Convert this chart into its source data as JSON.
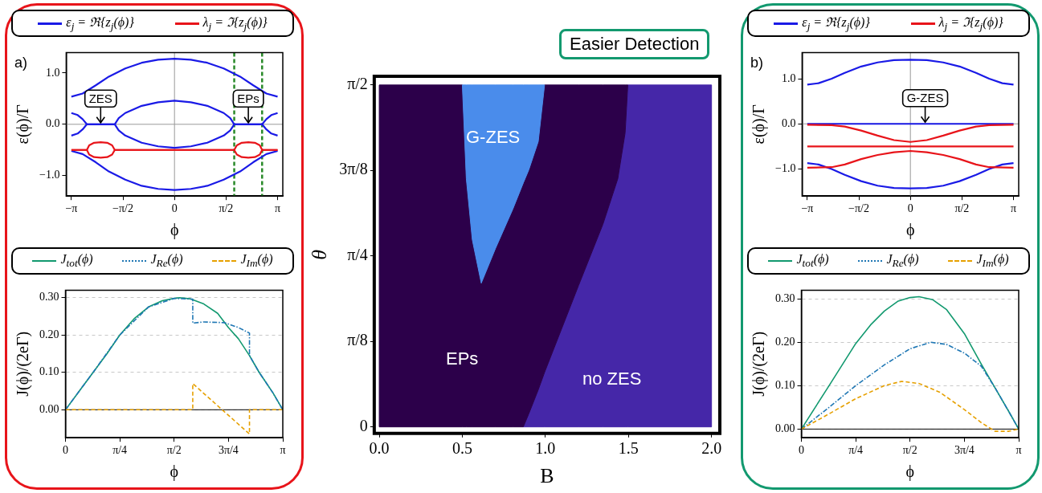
{
  "chart_data": [
    {
      "type": "line",
      "xlabel": "ϕ",
      "ylabel": "ε(ϕ)/Γ",
      "legend": "top",
      "grid": false,
      "xlim": [
        -3.3,
        3.3
      ],
      "xticks": [
        {
          "value": -3.1416,
          "label": "−π"
        },
        {
          "value": -1.5708,
          "label": "−π/2"
        },
        {
          "value": 0,
          "label": "0"
        },
        {
          "value": 1.5708,
          "label": "π/2"
        },
        {
          "value": 3.1416,
          "label": "π"
        }
      ],
      "ylim": [
        -1.4,
        1.4
      ],
      "yticks": [
        {
          "value": 1,
          "label": "1.0"
        },
        {
          "value": 0,
          "label": "0.0"
        },
        {
          "value": -1,
          "label": "−1.0"
        }
      ],
      "series": [
        {
          "name": "ε$_{j}$ = ℜ{z$_{j}$(ϕ)}",
          "color": "#1a1ae6",
          "x": [
            -3.1416,
            -2.8,
            -2.4,
            -2.0,
            -1.5,
            -1.0,
            -0.5,
            0,
            0.5,
            1.0,
            1.5,
            2.0,
            2.4,
            2.8,
            3.1416
          ],
          "values": [
            0.54,
            0.6,
            0.76,
            0.93,
            1.09,
            1.2,
            1.26,
            1.28,
            1.26,
            1.2,
            1.09,
            0.93,
            0.76,
            0.6,
            0.54
          ]
        },
        {
          "color": "#1a1ae6",
          "x": [
            -3.1416,
            -2.8,
            -2.4,
            -2.0,
            -1.5,
            -1.0,
            -0.5,
            0,
            0.5,
            1.0,
            1.5,
            2.0,
            2.4,
            2.8,
            3.1416
          ],
          "values": [
            -0.52,
            -0.58,
            -0.74,
            -0.92,
            -1.08,
            -1.2,
            -1.26,
            -1.28,
            -1.26,
            -1.2,
            -1.08,
            -0.92,
            -0.74,
            -0.58,
            -0.52
          ]
        },
        {
          "color": "#1a1ae6",
          "x": [
            -3.1416,
            -2.95,
            -2.8,
            -2.67,
            -1.82,
            -1.7,
            -1.5,
            -1.0,
            -0.5,
            0,
            0.5,
            1.0,
            1.5,
            1.7,
            1.82,
            2.67,
            2.8,
            2.95,
            3.1416
          ],
          "values": [
            0.22,
            0.18,
            0.1,
            0,
            0,
            0.12,
            0.22,
            0.36,
            0.43,
            0.46,
            0.43,
            0.36,
            0.22,
            0.12,
            0,
            0,
            0.1,
            0.18,
            0.22
          ]
        },
        {
          "color": "#1a1ae6",
          "x": [
            -3.1416,
            -2.95,
            -2.8,
            -2.67,
            -1.82,
            -1.7,
            -1.5,
            -1.0,
            -0.5,
            0,
            0.5,
            1.0,
            1.5,
            1.7,
            1.82,
            2.67,
            2.8,
            2.95,
            3.1416
          ],
          "values": [
            -0.22,
            -0.18,
            -0.1,
            0,
            0,
            -0.12,
            -0.22,
            -0.36,
            -0.43,
            -0.46,
            -0.43,
            -0.36,
            -0.22,
            -0.12,
            0,
            0,
            -0.1,
            -0.18,
            -0.22
          ]
        },
        {
          "name": "λ$_{j}$ = ℑ{z$_{j}$(ϕ)}",
          "color": "#e8141a",
          "x": [
            -3.1416,
            -2.67,
            -2.6,
            -2.45,
            -2.25,
            -2.05,
            -1.9,
            -1.82,
            1.82,
            1.9,
            2.05,
            2.25,
            2.45,
            2.6,
            2.67,
            3.1416
          ],
          "values": [
            -0.5,
            -0.5,
            -0.41,
            -0.36,
            -0.35,
            -0.36,
            -0.41,
            -0.5,
            -0.5,
            -0.41,
            -0.36,
            -0.35,
            -0.36,
            -0.41,
            -0.5,
            -0.5
          ]
        },
        {
          "color": "#e8141a",
          "x": [
            -3.1416,
            -2.67,
            -2.6,
            -2.45,
            -2.25,
            -2.05,
            -1.9,
            -1.82,
            1.82,
            1.9,
            2.05,
            2.25,
            2.45,
            2.6,
            2.67,
            3.1416
          ],
          "values": [
            -0.5,
            -0.5,
            -0.59,
            -0.64,
            -0.65,
            -0.64,
            -0.59,
            -0.5,
            -0.5,
            -0.59,
            -0.64,
            -0.65,
            -0.64,
            -0.59,
            -0.5,
            -0.5
          ]
        }
      ],
      "ref_lines": [
        {
          "axis": "x",
          "value": 0,
          "color": "#999999"
        },
        {
          "axis": "y",
          "value": 0,
          "color": "#999999"
        },
        {
          "axis": "x",
          "value": 1.82,
          "color": "#2a8a2a",
          "line_style": "dashed"
        },
        {
          "axis": "x",
          "value": 2.67,
          "color": "#2a8a2a",
          "line_style": "dashed"
        }
      ],
      "annotations": [
        "a)",
        {
          "text": "ZES",
          "x": -2.25,
          "y": 0
        },
        {
          "text": "EPs",
          "x": 2.25,
          "y": 0
        }
      ]
    },
    {
      "type": "line",
      "xlabel": "ϕ",
      "ylabel": "J(ϕ)/(2eΓ)",
      "legend": "top",
      "grid": "y",
      "xlim": [
        0,
        3.1416
      ],
      "xticks": [
        {
          "value": 0,
          "label": "0"
        },
        {
          "value": 0.7854,
          "label": "π/4"
        },
        {
          "value": 1.5708,
          "label": "π/2"
        },
        {
          "value": 2.3562,
          "label": "3π/4"
        },
        {
          "value": 3.1416,
          "label": "π"
        }
      ],
      "ylim": [
        -0.075,
        0.32
      ],
      "yticks": [
        {
          "value": 0,
          "label": "0.00"
        },
        {
          "value": 0.1,
          "label": "0.10"
        },
        {
          "value": 0.2,
          "label": "0.20"
        },
        {
          "value": 0.3,
          "label": "0.30"
        }
      ],
      "series": [
        {
          "name": "J$_{tot}$(ϕ)",
          "color": "#12996f",
          "line_style": "solid",
          "x": [
            0,
            0.2,
            0.4,
            0.6,
            0.785,
            1.0,
            1.2,
            1.4,
            1.57,
            1.65,
            1.8,
            2.0,
            2.2,
            2.356,
            2.5,
            2.66,
            2.8,
            3.0,
            3.1416
          ],
          "values": [
            0,
            0.05,
            0.1,
            0.15,
            0.2,
            0.245,
            0.275,
            0.292,
            0.298,
            0.3,
            0.297,
            0.283,
            0.258,
            0.22,
            0.19,
            0.145,
            0.1,
            0.045,
            0
          ]
        },
        {
          "name": "J$_{Re}$(ϕ)",
          "color": "#1f77b4",
          "line_style": "dotted",
          "x": [
            0,
            0.4,
            0.785,
            1.2,
            1.57,
            1.84,
            1.84,
            2.0,
            2.3,
            2.5,
            2.66,
            2.66,
            2.8,
            3.0,
            3.1416
          ],
          "values": [
            0,
            0.1,
            0.2,
            0.275,
            0.298,
            0.296,
            0.232,
            0.235,
            0.233,
            0.22,
            0.205,
            0.145,
            0.1,
            0.045,
            0
          ]
        },
        {
          "name": "J$_{Im}$(ϕ)",
          "color": "#e6a000",
          "line_style": "dashed",
          "x": [
            0,
            1.84,
            1.84,
            2.66,
            2.66,
            3.1416
          ],
          "values": [
            0,
            0,
            0.07,
            -0.065,
            0,
            0
          ]
        }
      ],
      "ref_lines": [
        {
          "axis": "y",
          "value": 0,
          "color": "#000000"
        }
      ]
    },
    {
      "type": "area",
      "xlabel": "B",
      "ylabel": "θ",
      "legend": false,
      "stacked": true,
      "x": [
        0,
        0.5,
        0.524,
        0.56,
        0.614,
        0.7,
        0.804,
        0.867,
        0.9,
        0.957,
        0.995,
        1.0,
        1.2,
        1.346,
        1.436,
        1.48,
        1.496,
        2.0
      ],
      "xlim": [
        -0.03,
        2.05
      ],
      "xticks": [
        {
          "value": 0,
          "label": "0.0"
        },
        {
          "value": 0.5,
          "label": "0.5"
        },
        {
          "value": 1,
          "label": "1.0"
        },
        {
          "value": 1.5,
          "label": "1.5"
        },
        {
          "value": 2,
          "label": "2.0"
        }
      ],
      "ylim": [
        -0.03,
        1.61
      ],
      "yticks": [
        {
          "value": 0,
          "label": "0"
        },
        {
          "value": 0.3927,
          "label": "π/8"
        },
        {
          "value": 0.7854,
          "label": "π/4"
        },
        {
          "value": 1.1781,
          "label": "3π/8"
        },
        {
          "value": 1.5708,
          "label": "π/2"
        }
      ],
      "series": [
        {
          "color": "#4527a8",
          "values": [
            null,
            null,
            null,
            null,
            null,
            null,
            null,
            0,
            0.06,
            0.17,
            0.25,
            0.26,
            0.65,
            0.93,
            1.14,
            1.35,
            1.57,
            1.57
          ]
        },
        {
          "color": "#2c004a",
          "values": [
            1.57,
            1.57,
            1.14,
            0.86,
            0.66,
            0.82,
            1.0,
            1.12,
            1.12,
            1.14,
            1.32,
            1.31,
            0.92,
            0.64,
            0.43,
            0.22,
            0,
            null
          ]
        },
        {
          "color": "#4a8ceb",
          "values": [
            null,
            0,
            0.43,
            0.71,
            0.91,
            0.75,
            0.57,
            0.45,
            0.39,
            0.26,
            0,
            null,
            null,
            null,
            null,
            null,
            null,
            null
          ]
        }
      ],
      "annotations": [
        "Easier Detection",
        "G-ZES",
        "EPs",
        "no ZES"
      ]
    },
    {
      "type": "line",
      "xlabel": "ϕ",
      "ylabel": "ε(ϕ)/Γ",
      "legend": "top",
      "grid": false,
      "xlim": [
        -3.3,
        3.3
      ],
      "xticks": [
        {
          "value": -3.1416,
          "label": "−π"
        },
        {
          "value": -1.5708,
          "label": "−π/2"
        },
        {
          "value": 0,
          "label": "0"
        },
        {
          "value": 1.5708,
          "label": "π/2"
        },
        {
          "value": 3.1416,
          "label": "π"
        }
      ],
      "ylim": [
        -1.6,
        1.58
      ],
      "yticks": [
        {
          "value": 1,
          "label": "1.0"
        },
        {
          "value": 0,
          "label": "0.0"
        },
        {
          "value": -1,
          "label": "−1.0"
        }
      ],
      "series": [
        {
          "name": "ε$_{j}$ = ℜ{z$_{j}$(ϕ)}",
          "color": "#1a1ae6",
          "x": [
            -3.1416,
            -2.8,
            -2.4,
            -2.0,
            -1.5,
            -1.0,
            -0.5,
            0,
            0.5,
            1.0,
            1.5,
            2.0,
            2.4,
            2.8,
            3.1416
          ],
          "values": [
            0.87,
            0.9,
            1.0,
            1.13,
            1.27,
            1.36,
            1.41,
            1.42,
            1.41,
            1.36,
            1.27,
            1.13,
            1.0,
            0.9,
            0.87
          ]
        },
        {
          "color": "#1a1ae6",
          "x": [
            -3.1416,
            -2.8,
            -2.4,
            -2.0,
            -1.5,
            -1.0,
            -0.5,
            0,
            0.5,
            1.0,
            1.5,
            2.0,
            2.4,
            2.8,
            3.1416
          ],
          "values": [
            -0.87,
            -0.9,
            -1.0,
            -1.13,
            -1.27,
            -1.37,
            -1.42,
            -1.43,
            -1.42,
            -1.37,
            -1.27,
            -1.13,
            -1.0,
            -0.9,
            -0.87
          ]
        },
        {
          "color": "#1a1ae6",
          "x": [
            -3.1416,
            3.1416
          ],
          "values": [
            0,
            0
          ]
        },
        {
          "name": "λ$_{j}$ = ℑ{z$_{j}$(ϕ)}",
          "color": "#e8141a",
          "x": [
            -3.1416,
            -2.4,
            -2.0,
            -1.5,
            -1.0,
            -0.5,
            0,
            0.5,
            1.0,
            1.5,
            2.0,
            2.4,
            3.1416
          ],
          "values": [
            -0.02,
            -0.03,
            -0.06,
            -0.15,
            -0.26,
            -0.36,
            -0.4,
            -0.36,
            -0.26,
            -0.15,
            -0.06,
            -0.03,
            -0.02
          ]
        },
        {
          "color": "#e8141a",
          "x": [
            -3.1416,
            3.1416
          ],
          "values": [
            -0.5,
            -0.5
          ]
        },
        {
          "color": "#e8141a",
          "x": [
            -3.1416,
            -2.4,
            -2.0,
            -1.5,
            -1.0,
            -0.5,
            0,
            0.5,
            1.0,
            1.5,
            2.0,
            2.4,
            3.1416
          ],
          "values": [
            -0.97,
            -0.96,
            -0.9,
            -0.78,
            -0.69,
            -0.63,
            -0.6,
            -0.63,
            -0.69,
            -0.78,
            -0.9,
            -0.96,
            -0.97
          ]
        }
      ],
      "ref_lines": [
        {
          "axis": "x",
          "value": 0,
          "color": "#999999"
        },
        {
          "axis": "y",
          "value": 0,
          "color": "#999999"
        }
      ],
      "annotations": [
        "b)",
        {
          "text": "G-ZES",
          "x": 0.45,
          "y": 0
        }
      ]
    },
    {
      "type": "line",
      "xlabel": "ϕ",
      "ylabel": "J(ϕ)/(2eΓ)",
      "legend": "top",
      "grid": "y",
      "xlim": [
        0,
        3.1416
      ],
      "xticks": [
        {
          "value": 0,
          "label": "0"
        },
        {
          "value": 0.7854,
          "label": "π/4"
        },
        {
          "value": 1.5708,
          "label": "π/2"
        },
        {
          "value": 2.3562,
          "label": "3π/4"
        },
        {
          "value": 3.1416,
          "label": "π"
        }
      ],
      "ylim": [
        -0.02,
        0.32
      ],
      "yticks": [
        {
          "value": 0,
          "label": "0.00"
        },
        {
          "value": 0.1,
          "label": "0.10"
        },
        {
          "value": 0.2,
          "label": "0.20"
        },
        {
          "value": 0.3,
          "label": "0.30"
        }
      ],
      "series": [
        {
          "name": "J$_{tot}$(ϕ)",
          "color": "#12996f",
          "line_style": "solid",
          "x": [
            0,
            0.2,
            0.4,
            0.785,
            1.0,
            1.2,
            1.4,
            1.57,
            1.7,
            1.9,
            2.1,
            2.356,
            2.6,
            2.8,
            3.0,
            3.1416
          ],
          "values": [
            0,
            0.05,
            0.1,
            0.197,
            0.24,
            0.272,
            0.295,
            0.303,
            0.305,
            0.298,
            0.275,
            0.22,
            0.15,
            0.095,
            0.04,
            0
          ]
        },
        {
          "name": "J$_{Re}$(ϕ)",
          "color": "#1f77b4",
          "line_style": "dotted",
          "x": [
            0,
            0.4,
            0.785,
            1.2,
            1.57,
            1.87,
            2.1,
            2.356,
            2.6,
            2.8,
            3.0,
            3.1416
          ],
          "values": [
            0,
            0.05,
            0.1,
            0.148,
            0.185,
            0.2,
            0.195,
            0.175,
            0.145,
            0.095,
            0.04,
            0
          ]
        },
        {
          "name": "J$_{Im}$(ϕ)",
          "color": "#e6a000",
          "line_style": "dashed",
          "x": [
            0,
            0.4,
            0.785,
            1.2,
            1.45,
            1.7,
            2.0,
            2.356,
            2.6,
            2.8,
            3.0,
            3.1416
          ],
          "values": [
            0,
            0.035,
            0.07,
            0.1,
            0.11,
            0.105,
            0.085,
            0.045,
            0.015,
            -0.005,
            -0.005,
            0
          ]
        }
      ],
      "ref_lines": [
        {
          "axis": "y",
          "value": 0,
          "color": "#000000"
        }
      ]
    }
  ]
}
